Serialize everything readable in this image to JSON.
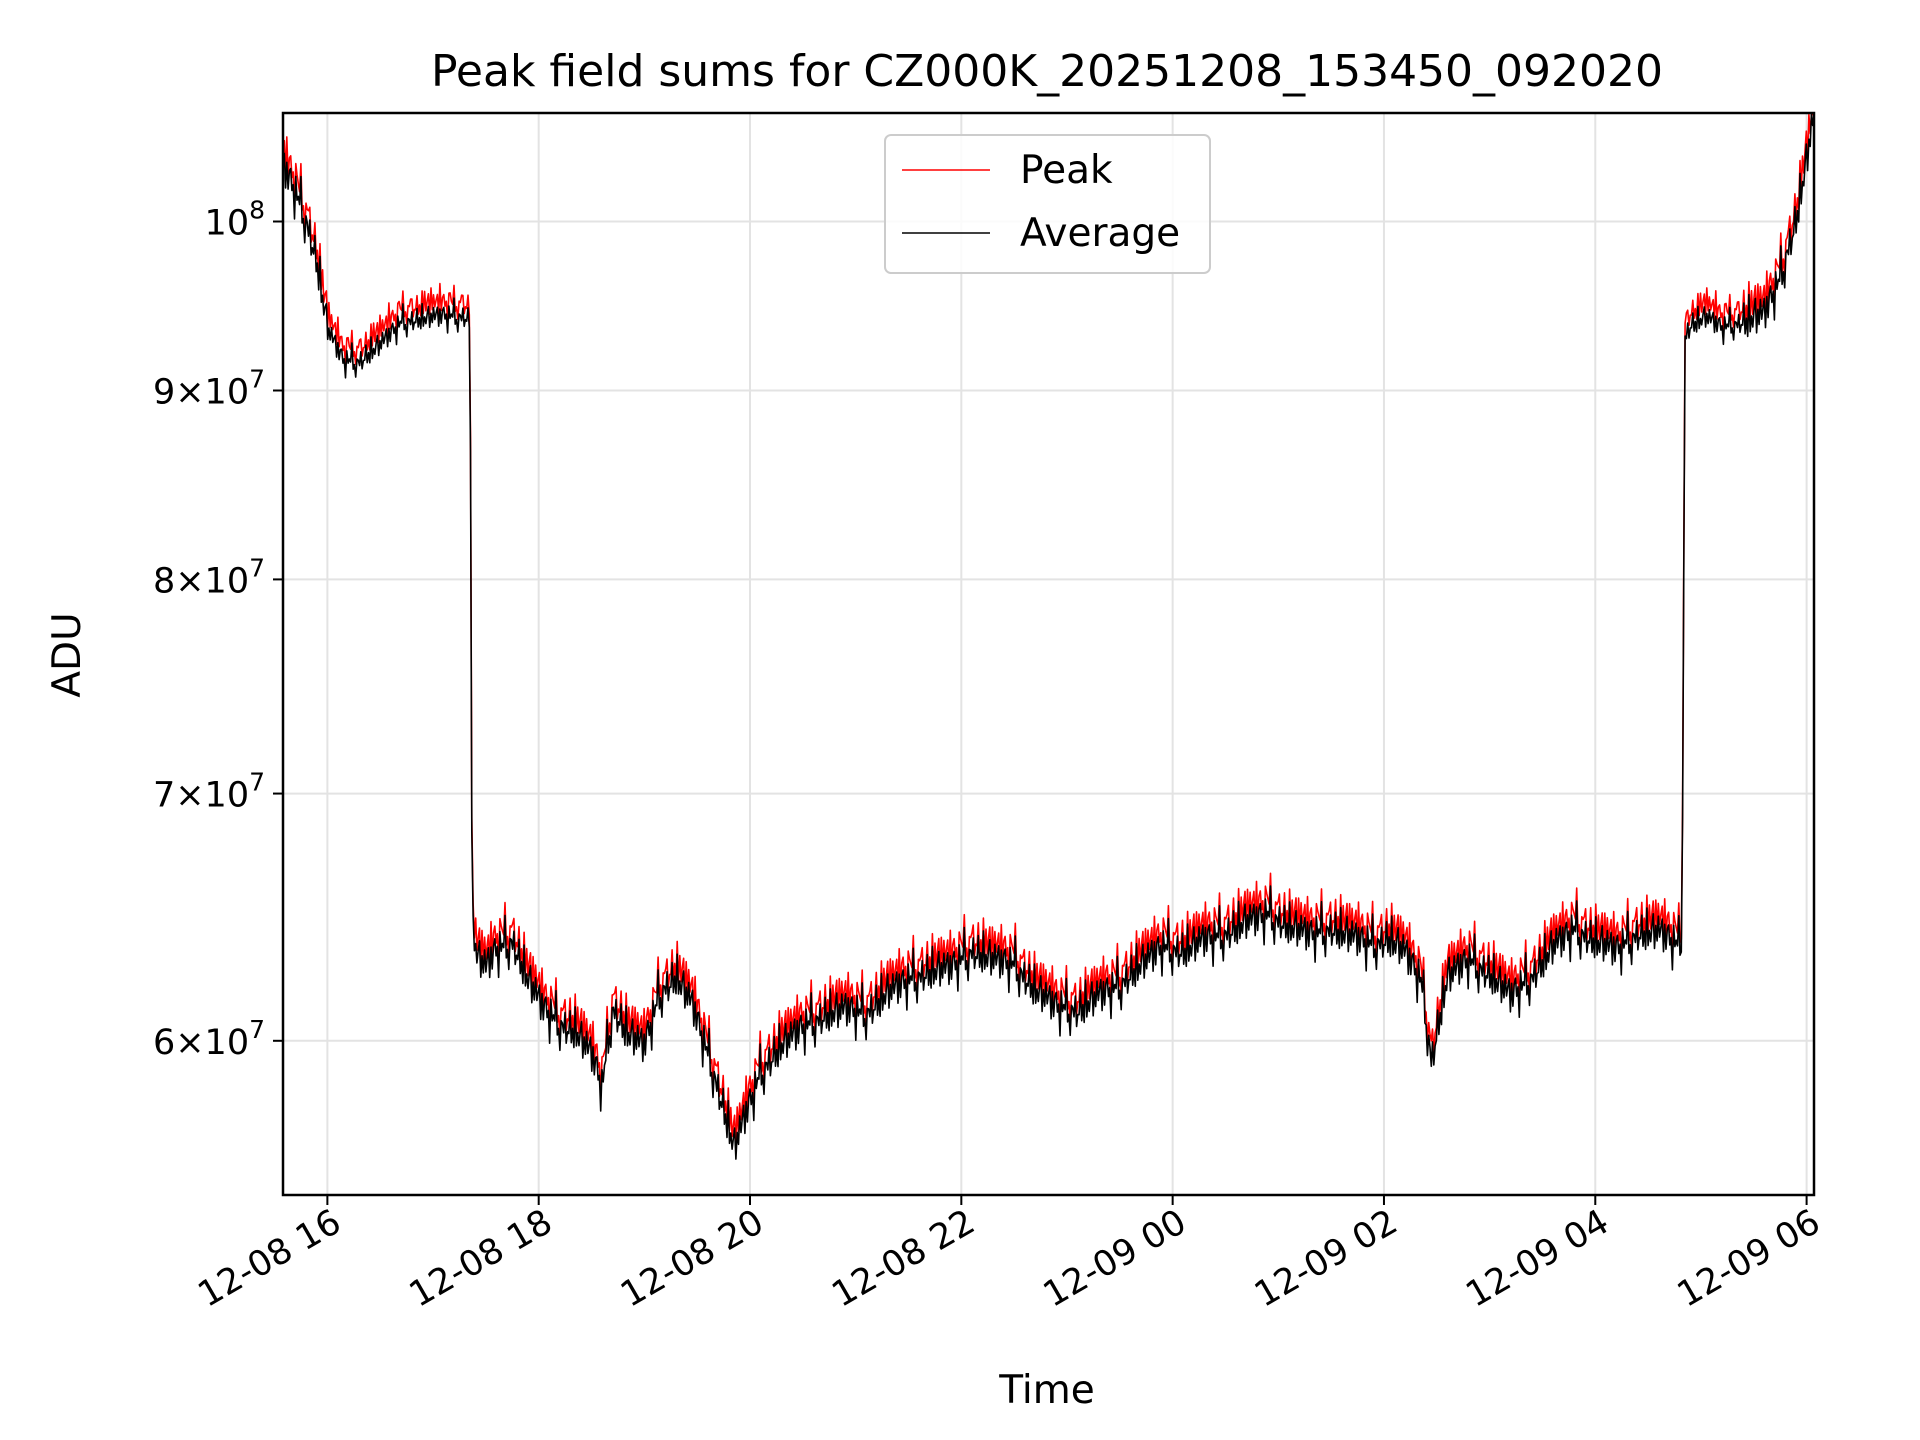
{
  "chart_data": {
    "type": "line",
    "title": "Peak field sums for CZ000K_20251208_153450_092020",
    "xlabel": "Time",
    "ylabel": "ADU",
    "y_scale": "log",
    "xlim_hours": [
      -0.42,
      14.07
    ],
    "ylim": [
      54500000,
      107000000
    ],
    "grid": true,
    "legend_position": "upper center",
    "x_ticks": [
      {
        "hour": 0,
        "label": "12-08 16"
      },
      {
        "hour": 2,
        "label": "12-08 18"
      },
      {
        "hour": 4,
        "label": "12-08 20"
      },
      {
        "hour": 6,
        "label": "12-08 22"
      },
      {
        "hour": 8,
        "label": "12-09 00"
      },
      {
        "hour": 10,
        "label": "12-09 02"
      },
      {
        "hour": 12,
        "label": "12-09 04"
      },
      {
        "hour": 14,
        "label": "12-09 06"
      }
    ],
    "y_ticks": [
      {
        "value": 60000000,
        "mant": "6",
        "exp": "7"
      },
      {
        "value": 70000000,
        "mant": "7",
        "exp": "7"
      },
      {
        "value": 80000000,
        "mant": "8",
        "exp": "7"
      },
      {
        "value": 90000000,
        "mant": "9",
        "exp": "7"
      },
      {
        "value": 100000000,
        "mant": "",
        "exp": "8"
      }
    ],
    "series": [
      {
        "name": "Peak",
        "color": "#ff0000",
        "offset_ratio": 1.008
      },
      {
        "name": "Average",
        "color": "#000000",
        "offset_ratio": 1.0
      }
    ],
    "average_profile": {
      "hours": [
        -0.42,
        -0.3,
        -0.2,
        -0.1,
        0.0,
        0.15,
        0.3,
        0.5,
        0.7,
        0.9,
        1.1,
        1.3,
        1.35,
        1.37,
        1.42,
        1.5,
        1.6,
        1.75,
        1.9,
        2.05,
        2.2,
        2.35,
        2.5,
        2.6,
        2.7,
        2.85,
        3.0,
        3.15,
        3.3,
        3.45,
        3.6,
        3.75,
        3.85,
        3.95,
        4.1,
        4.3,
        4.5,
        4.7,
        4.9,
        5.1,
        5.3,
        5.5,
        5.7,
        5.9,
        6.1,
        6.3,
        6.5,
        6.7,
        6.9,
        7.1,
        7.3,
        7.5,
        7.7,
        7.9,
        8.1,
        8.3,
        8.5,
        8.7,
        8.9,
        9.1,
        9.3,
        9.5,
        9.7,
        9.9,
        10.05,
        10.2,
        10.35,
        10.45,
        10.6,
        10.8,
        11.0,
        11.2,
        11.4,
        11.6,
        11.8,
        12.0,
        12.2,
        12.4,
        12.6,
        12.78,
        12.82,
        12.85,
        12.9,
        13.05,
        13.2,
        13.4,
        13.6,
        13.75,
        13.9,
        14.0,
        14.07
      ],
      "values": [
        103500000,
        101800000,
        100000000,
        97500000,
        93500000,
        91700000,
        91600000,
        92600000,
        93900000,
        94100000,
        94300000,
        94200000,
        94000000,
        64500000,
        63200000,
        62800000,
        63500000,
        63800000,
        62300000,
        61200000,
        60600000,
        60300000,
        59500000,
        58300000,
        61200000,
        60200000,
        59800000,
        61800000,
        62400000,
        61400000,
        59500000,
        57500000,
        56100000,
        57200000,
        58800000,
        59800000,
        60500000,
        60900000,
        61200000,
        61000000,
        61800000,
        62300000,
        62600000,
        62800000,
        63400000,
        63100000,
        62900000,
        61900000,
        61300000,
        61100000,
        61700000,
        62100000,
        62900000,
        63600000,
        63400000,
        63900000,
        64100000,
        64600000,
        64900000,
        64400000,
        64100000,
        64300000,
        64000000,
        63700000,
        63900000,
        63400000,
        62300000,
        59200000,
        62400000,
        63100000,
        62500000,
        61700000,
        62400000,
        63600000,
        64300000,
        63800000,
        63500000,
        64100000,
        64200000,
        63700000,
        63500000,
        93000000,
        93700000,
        94200000,
        93600000,
        93900000,
        94400000,
        96500000,
        100000000,
        103800000,
        107000000
      ]
    },
    "noise_pattern": [
      0.0,
      0.6,
      -0.4,
      1.1,
      -1.3,
      0.5,
      0.9,
      -0.8,
      0.2,
      -1.6,
      1.4,
      -0.3,
      0.7,
      -1.0,
      1.8,
      -0.6,
      0.3,
      -1.9,
      1.2,
      0.1,
      -0.7,
      1.5,
      -1.2,
      0.4,
      -0.2,
      1.0,
      -1.5,
      0.8,
      -0.9,
      1.7,
      -0.5,
      0.6,
      -1.1,
      0.0,
      1.3,
      -1.4,
      0.9,
      -0.1,
      0.5,
      -0.8
    ],
    "noise_amplitude": {
      "default": 0.0075,
      "settled_plateau_start": 0.0045,
      "settled_plateau_end": 0.0045,
      "transition_hours": [
        0.0,
        1.38,
        12.8,
        13.4
      ]
    }
  }
}
